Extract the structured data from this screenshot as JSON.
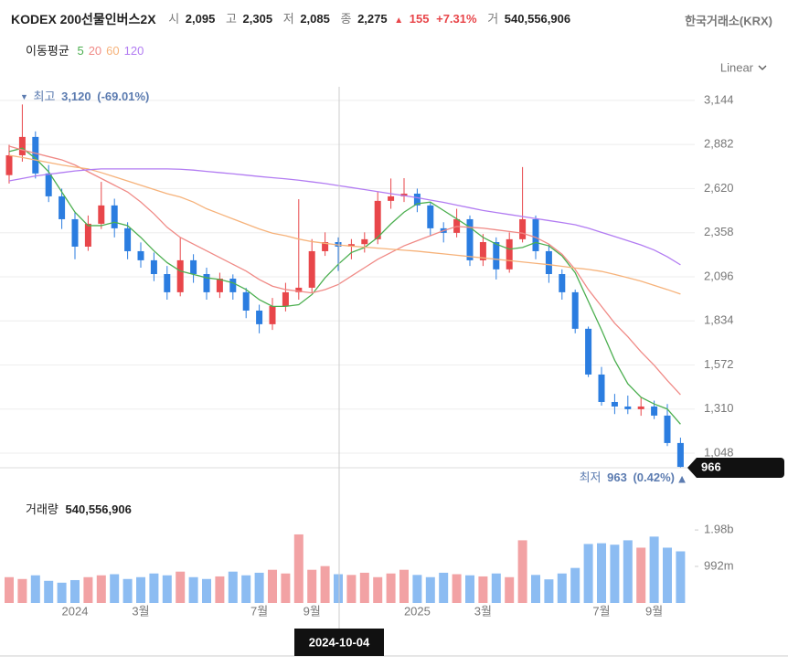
{
  "header": {
    "title": "KODEX 200선물인버스2X",
    "fields": [
      {
        "label": "시",
        "value": "2,095"
      },
      {
        "label": "고",
        "value": "2,305"
      },
      {
        "label": "저",
        "value": "2,085"
      },
      {
        "label": "종",
        "value": "2,275"
      }
    ],
    "change": {
      "arrow": "▲",
      "value": "155",
      "pct": "+7.31%"
    },
    "volume": {
      "label": "거",
      "value": "540,556,906"
    },
    "exchange": "한국거래소(KRX)"
  },
  "crosshair_label": "2024-10-04",
  "chart_data": [
    {
      "type": "candlestick",
      "scale": "Linear",
      "grid": true,
      "up_color": "#e8464a",
      "down_color": "#2b7de0",
      "categories": [
        null,
        null,
        null,
        null,
        null,
        "2024",
        null,
        null,
        null,
        null,
        "3월",
        null,
        null,
        null,
        null,
        null,
        null,
        null,
        null,
        "7월",
        null,
        null,
        null,
        "9월",
        null,
        null,
        null,
        null,
        null,
        null,
        null,
        "2025",
        null,
        null,
        null,
        null,
        "3월",
        null,
        null,
        null,
        null,
        null,
        null,
        null,
        null,
        "7월",
        null,
        null,
        null,
        "9월",
        null,
        null
      ],
      "open": [
        2700,
        2818,
        2927,
        2710,
        2574,
        2438,
        2275,
        2411,
        2520,
        2384,
        2248,
        2194,
        2112,
        2004,
        2194,
        2112,
        2004,
        2085,
        2004,
        1895,
        1814,
        1922,
        2004,
        2031,
        2248,
        2302,
        2275,
        2290,
        2319,
        2547,
        2574,
        2590,
        2520,
        2384,
        2357,
        2438,
        2194,
        2302,
        2140,
        2319,
        2438,
        2248,
        2112,
        2004,
        1787,
        1515,
        1352,
        1325,
        1309,
        1325,
        1271,
        1108
      ],
      "high": [
        2880,
        3120,
        2960,
        2760,
        2620,
        2480,
        2460,
        2660,
        2560,
        2420,
        2300,
        2240,
        2160,
        2330,
        2230,
        2150,
        2120,
        2110,
        2030,
        1930,
        1970,
        2060,
        2557,
        2320,
        2360,
        2330,
        2320,
        2360,
        2600,
        2680,
        2682,
        2620,
        2540,
        2420,
        2500,
        2460,
        2350,
        2330,
        2360,
        2748,
        2460,
        2290,
        2140,
        2020,
        1800,
        1560,
        1400,
        1390,
        1380,
        1360,
        1340,
        1140
      ],
      "low": [
        2650,
        2780,
        2680,
        2540,
        2380,
        2200,
        2250,
        2380,
        2330,
        2200,
        2150,
        2070,
        1960,
        1980,
        2060,
        1960,
        1970,
        1960,
        1850,
        1760,
        1780,
        1890,
        1960,
        2000,
        2220,
        2130,
        2200,
        2240,
        2290,
        2500,
        2540,
        2480,
        2340,
        2300,
        2330,
        2160,
        2160,
        2080,
        2120,
        2300,
        2200,
        2060,
        1960,
        1760,
        1500,
        1330,
        1280,
        1280,
        1270,
        1250,
        1090,
        963
      ],
      "close": [
        2818,
        2927,
        2710,
        2574,
        2438,
        2275,
        2411,
        2520,
        2384,
        2248,
        2194,
        2112,
        2004,
        2194,
        2112,
        2004,
        2085,
        2004,
        1895,
        1814,
        1922,
        2004,
        2031,
        2248,
        2302,
        2275,
        2290,
        2319,
        2547,
        2574,
        2590,
        2520,
        2384,
        2357,
        2438,
        2194,
        2302,
        2140,
        2319,
        2438,
        2248,
        2112,
        2004,
        1787,
        1515,
        1352,
        1325,
        1309,
        1325,
        1271,
        1108,
        966
      ],
      "legend_title": "이동평균",
      "series": [
        {
          "name": "5",
          "color": "#4caf50",
          "values": [
            2840,
            2860,
            2800,
            2720,
            2600,
            2480,
            2400,
            2400,
            2420,
            2400,
            2330,
            2250,
            2180,
            2130,
            2110,
            2090,
            2080,
            2060,
            2020,
            1960,
            1920,
            1920,
            1930,
            1990,
            2090,
            2170,
            2240,
            2270,
            2330,
            2410,
            2480,
            2530,
            2540,
            2490,
            2440,
            2390,
            2330,
            2290,
            2260,
            2270,
            2300,
            2280,
            2220,
            2120,
            1950,
            1780,
            1600,
            1460,
            1380,
            1340,
            1310,
            1220
          ]
        },
        {
          "name": "20",
          "color": "#f08a86",
          "values": [
            2872,
            2850,
            2830,
            2810,
            2791,
            2760,
            2720,
            2680,
            2640,
            2600,
            2540,
            2470,
            2390,
            2330,
            2290,
            2250,
            2210,
            2170,
            2130,
            2080,
            2040,
            2020,
            2010,
            2000,
            2020,
            2050,
            2100,
            2150,
            2200,
            2240,
            2280,
            2310,
            2340,
            2370,
            2395,
            2390,
            2385,
            2375,
            2365,
            2355,
            2330,
            2290,
            2230,
            2140,
            2020,
            1920,
            1820,
            1740,
            1650,
            1570,
            1480,
            1395
          ]
        },
        {
          "name": "60",
          "color": "#f6b27a",
          "values": [
            2818,
            2805,
            2790,
            2775,
            2760,
            2748,
            2737,
            2715,
            2690,
            2665,
            2640,
            2615,
            2590,
            2570,
            2540,
            2500,
            2470,
            2440,
            2410,
            2380,
            2355,
            2340,
            2320,
            2305,
            2295,
            2285,
            2278,
            2272,
            2266,
            2260,
            2254,
            2248,
            2240,
            2232,
            2224,
            2216,
            2208,
            2200,
            2192,
            2184,
            2176,
            2168,
            2158,
            2148,
            2140,
            2128,
            2110,
            2090,
            2070,
            2045,
            2020,
            1993
          ]
        },
        {
          "name": "120",
          "color": "#b27cf2",
          "values": [
            2666,
            2680,
            2695,
            2705,
            2715,
            2725,
            2732,
            2737,
            2737,
            2737,
            2737,
            2737,
            2737,
            2735,
            2730,
            2722,
            2715,
            2708,
            2700,
            2692,
            2685,
            2678,
            2670,
            2660,
            2650,
            2638,
            2626,
            2614,
            2602,
            2590,
            2578,
            2566,
            2552,
            2538,
            2522,
            2506,
            2490,
            2478,
            2466,
            2454,
            2442,
            2430,
            2418,
            2405,
            2385,
            2360,
            2335,
            2310,
            2285,
            2255,
            2215,
            2167
          ]
        }
      ],
      "ylim": [
        961,
        3225
      ],
      "yticks": [
        {
          "value": 3144,
          "label": "3,144"
        },
        {
          "value": 2882,
          "label": "2,882"
        },
        {
          "value": 2620,
          "label": "2,620"
        },
        {
          "value": 2358,
          "label": "2,358"
        },
        {
          "value": 2096,
          "label": "2,096"
        },
        {
          "value": 1834,
          "label": "1,834"
        },
        {
          "value": 1572,
          "label": "1,572"
        },
        {
          "value": 1310,
          "label": "1,310"
        },
        {
          "value": 1048,
          "label": "1,048"
        }
      ],
      "high_marker": {
        "label": "최고",
        "value_label": "3,120",
        "change": "(-69.01%)"
      },
      "low_marker": {
        "label": "최저",
        "change": "(0.42%)"
      }
    },
    {
      "type": "bar",
      "title": "거래량",
      "title_value": "540,556,906",
      "up_color": "#f2a2a4",
      "down_color": "#8cbcf2",
      "values": [
        700000000,
        650000000,
        750000000,
        600000000,
        550000000,
        620000000,
        700000000,
        750000000,
        780000000,
        650000000,
        700000000,
        800000000,
        750000000,
        850000000,
        700000000,
        650000000,
        720000000,
        850000000,
        750000000,
        820000000,
        900000000,
        800000000,
        1860000000,
        900000000,
        1000000000,
        780000000,
        760000000,
        820000000,
        700000000,
        800000000,
        900000000,
        760000000,
        700000000,
        820000000,
        780000000,
        750000000,
        720000000,
        800000000,
        700000000,
        1700000000,
        760000000,
        640000000,
        800000000,
        950000000,
        1600000000,
        1620000000,
        1580000000,
        1700000000,
        1500000000,
        1800000000,
        1500000000,
        1400000000
      ],
      "ylim": [
        0,
        2850000000
      ],
      "yticks": [
        {
          "value": 1980000000,
          "label": "1.98b"
        },
        {
          "value": 992000000,
          "label": "992m"
        }
      ]
    }
  ]
}
